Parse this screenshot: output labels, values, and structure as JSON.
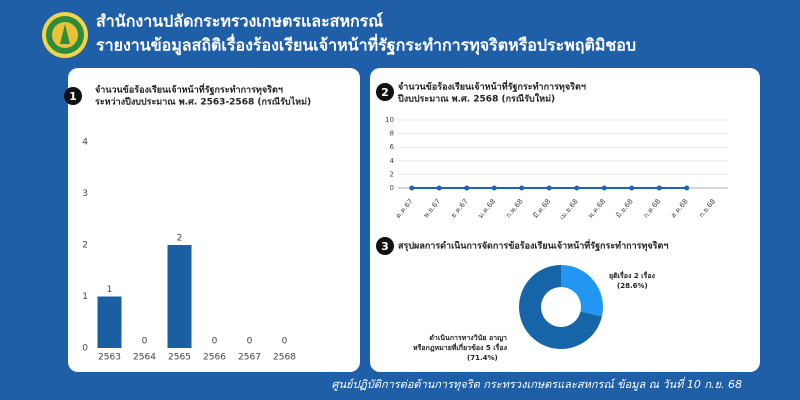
{
  "header": {
    "title": "สำนักงานปลัดกระทรวงเกษตรและสหกรณ์",
    "subtitle": "รายงานข้อมูลสถิติเรื่องร้องเรียนเจ้าหน้าที่รัฐกระทำการทุจริตหรือประพฤติมิชอบ"
  },
  "footer": "ศูนย์ปฏิบัติการต่อต้านการทุจริต กระทรวงเกษตรและสหกรณ์ ข้อมูล ณ วันที่ 10 ก.ย. 68",
  "chart_data": [
    {
      "type": "bar",
      "badge": "1",
      "title": [
        "จำนวนข้อร้องเรียนเจ้าหน้าที่รัฐกระทำการทุจริตฯ",
        "ระหว่างปีงบประมาณ พ.ศ. 2563-2568 (กรณีรับไหม่)"
      ],
      "categories": [
        "2563",
        "2564",
        "2565",
        "2566",
        "2567",
        "2568"
      ],
      "values": [
        1,
        0,
        2,
        0,
        0,
        0
      ],
      "color": "#1a5fa0",
      "ylim": [
        0,
        4
      ],
      "yticks": [
        0,
        1,
        2,
        3,
        4
      ],
      "grid": false
    },
    {
      "type": "line",
      "badge": "2",
      "title": [
        "จำนวนข้อร้องเรียนเจ้าหน้าที่รัฐกระทำการทุจริตฯ",
        "ปีงบประมาณ พ.ศ. 2568 (กรณีรับใหม่)"
      ],
      "categories": [
        "ต.ค.67",
        "พ.ย.67",
        "ธ.ค.67",
        "ม.ค.68",
        "ก.พ.68",
        "มี.ค.68",
        "เม.ย.68",
        "พ.ค.68",
        "มิ.ย.68",
        "ก.ค.68",
        "ส.ค.68",
        "ก.ย.68"
      ],
      "values": [
        0,
        0,
        0,
        0,
        0,
        0,
        0,
        0,
        0,
        0,
        0,
        null
      ],
      "color": "#1f64b3",
      "ylim": [
        0,
        10
      ],
      "yticks": [
        0,
        2,
        4,
        6,
        8,
        10
      ],
      "grid": true
    },
    {
      "type": "pie",
      "donut": true,
      "badge": "3",
      "title": [
        "สรุปผลการดำเนินการจัดการข้อร้องเรียนเจ้าหน้าที่รัฐกระทำการทุจริตฯ"
      ],
      "categories": [
        [
          "ยุติเรื่อง 2 เรื่อง"
        ],
        [
          "ดำเนินการทางวินัย อาญา",
          "หรือกฎหมายที่เกี่ยวข้อง 5 เรื่อง"
        ]
      ],
      "values": [
        28.6,
        71.4
      ],
      "value_labels": [
        "(28.6%)",
        "(71.4%)"
      ],
      "colors": [
        "#2196f3",
        "#1565a8"
      ]
    }
  ]
}
